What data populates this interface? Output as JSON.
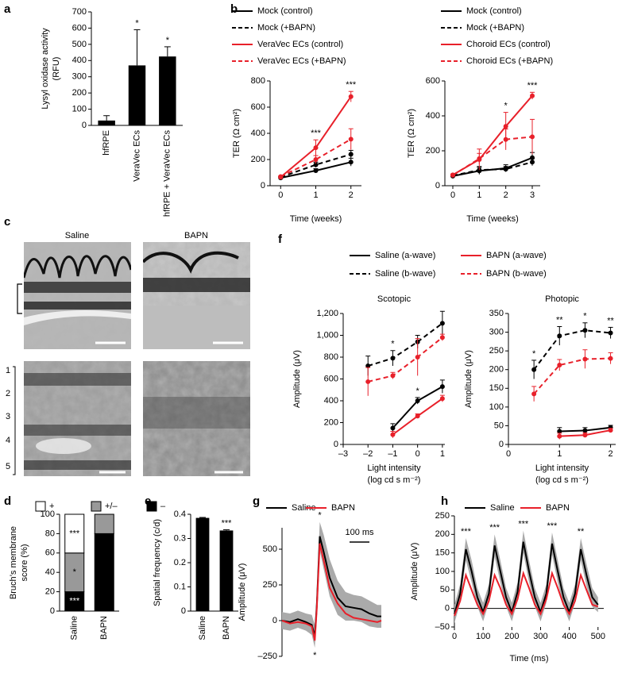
{
  "chart_data": [
    {
      "type": "bar",
      "panel": "a",
      "ylabel": [
        "Lysyl oxidase activity",
        "(RFU)"
      ],
      "categories": [
        "hfRPE",
        "VeraVec ECs",
        "hfRPE + VeraVec ECs"
      ],
      "values": [
        30,
        370,
        425
      ],
      "errors": [
        30,
        220,
        60
      ],
      "stars": [
        null,
        "*",
        "*"
      ],
      "color": "#000000",
      "ylim": [
        0,
        700
      ],
      "yticks": [
        0,
        100,
        200,
        300,
        400,
        500,
        600,
        700
      ]
    },
    {
      "type": "line",
      "panel": "b",
      "xlabel": "Time (weeks)",
      "ylabel": [
        "TER (Ω cm²)"
      ],
      "x": [
        0,
        1,
        2
      ],
      "xlim": [
        -0.3,
        2.3
      ],
      "xticks": [
        0,
        1,
        2
      ],
      "ylim": [
        0,
        800
      ],
      "yticks": [
        0,
        200,
        400,
        600,
        800
      ],
      "series": [
        {
          "name": "Mock (control)",
          "color": "#000000",
          "dashed": false,
          "markers": true,
          "values": [
            60,
            115,
            180
          ],
          "errors": [
            5,
            15,
            30
          ]
        },
        {
          "name": "Mock (+BAPN)",
          "color": "#000000",
          "dashed": true,
          "markers": true,
          "values": [
            65,
            160,
            240
          ],
          "errors": [
            5,
            20,
            30
          ]
        },
        {
          "name": "VeraVec ECs (control)",
          "color": "#e8202a",
          "dashed": false,
          "markers": true,
          "values": [
            65,
            290,
            680
          ],
          "errors": [
            5,
            60,
            40
          ],
          "stars": [
            null,
            "***",
            "***"
          ]
        },
        {
          "name": "VeraVec ECs (+BAPN)",
          "color": "#e8202a",
          "dashed": true,
          "markers": true,
          "values": [
            70,
            200,
            355
          ],
          "errors": [
            5,
            30,
            80
          ]
        }
      ]
    },
    {
      "type": "line",
      "xlabel": "Time (weeks)",
      "ylabel": [
        "TER (Ω cm²)"
      ],
      "x": [
        0,
        1,
        2,
        3
      ],
      "xlim": [
        -0.3,
        3.3
      ],
      "xticks": [
        0,
        1,
        2,
        3
      ],
      "ylim": [
        0,
        600
      ],
      "yticks": [
        0,
        200,
        400,
        600
      ],
      "series": [
        {
          "name": "Mock (control)",
          "color": "#000000",
          "dashed": false,
          "markers": true,
          "values": [
            55,
            85,
            100,
            160
          ],
          "errors": [
            5,
            20,
            20,
            30
          ]
        },
        {
          "name": "Mock (+BAPN)",
          "color": "#000000",
          "dashed": true,
          "markers": true,
          "values": [
            58,
            90,
            95,
            135
          ],
          "errors": [
            5,
            20,
            15,
            20
          ]
        },
        {
          "name": "Choroid ECs (control)",
          "color": "#e8202a",
          "dashed": false,
          "markers": true,
          "values": [
            62,
            150,
            340,
            515
          ],
          "errors": [
            5,
            60,
            80,
            20
          ],
          "stars": [
            null,
            null,
            "*",
            "***"
          ]
        },
        {
          "name": "Choroid ECs (+BAPN)",
          "color": "#e8202a",
          "dashed": true,
          "markers": true,
          "values": [
            60,
            155,
            265,
            280
          ],
          "errors": [
            5,
            30,
            60,
            100
          ]
        }
      ]
    },
    {
      "type": "stacked_bar",
      "panel": "d",
      "ylabel": [
        "Bruch’s membrane",
        "score (%)"
      ],
      "categories": [
        "Saline",
        "BAPN"
      ],
      "ylim": [
        0,
        100
      ],
      "yticks": [
        0,
        20,
        40,
        60,
        80,
        100
      ],
      "series": [
        {
          "name": "–",
          "color": "#000000",
          "values": [
            20,
            80
          ],
          "stars": [
            "***",
            null
          ]
        },
        {
          "name": "+/–",
          "color": "#999999",
          "values": [
            40,
            20
          ],
          "stars": [
            "*",
            null
          ]
        },
        {
          "name": "+",
          "color": "#ffffff",
          "values": [
            40,
            0
          ],
          "stars": [
            "***",
            null
          ]
        }
      ]
    },
    {
      "type": "bar",
      "panel": "e",
      "ylabel": [
        "Spatial frequency (c/d)"
      ],
      "categories": [
        "Saline",
        "BAPN"
      ],
      "values": [
        0.385,
        0.333
      ],
      "errors": [
        0.002,
        0.003
      ],
      "stars": [
        null,
        "***"
      ],
      "color": "#000000",
      "ylim": [
        0,
        0.4
      ],
      "yticks": [
        0,
        0.1,
        0.2,
        0.3,
        0.4
      ]
    },
    {
      "type": "line",
      "panel": "f",
      "title": "Scotopic",
      "xlabel": [
        "Light intensity",
        "(log cd s m⁻²)"
      ],
      "ylabel": [
        "Amplitude (μV)"
      ],
      "xlim": [
        -3,
        1.1
      ],
      "xticks": [
        {
          "value": -3,
          "label": "–3"
        },
        {
          "value": -2,
          "label": "–2"
        },
        {
          "value": -1,
          "label": "–1"
        },
        0,
        1
      ],
      "ylim": [
        0,
        1200
      ],
      "yticks": [
        0,
        200,
        400,
        600,
        800,
        {
          "value": 1000,
          "label": "1,000"
        },
        {
          "value": 1200,
          "label": "1,200"
        }
      ],
      "series": [
        {
          "name": "Saline (a-wave)",
          "color": "#000000",
          "dashed": false,
          "markers": true,
          "x": [
            -1,
            0,
            1
          ],
          "values": [
            150,
            400,
            530
          ],
          "errors": [
            40,
            30,
            60
          ],
          "stars": [
            null,
            "*",
            null
          ]
        },
        {
          "name": "BAPN (a-wave)",
          "color": "#e8202a",
          "dashed": false,
          "markers": true,
          "x": [
            -1,
            0,
            1
          ],
          "values": [
            90,
            260,
            420
          ],
          "errors": [
            30,
            20,
            30
          ]
        },
        {
          "name": "Saline (b-wave)",
          "color": "#000000",
          "dashed": true,
          "markers": true,
          "x": [
            -2,
            -1,
            0,
            1
          ],
          "values": [
            720,
            790,
            940,
            1110
          ],
          "errors": [
            90,
            70,
            60,
            110
          ],
          "stars": [
            null,
            "*",
            null,
            null
          ]
        },
        {
          "name": "BAPN (b-wave)",
          "color": "#e8202a",
          "dashed": true,
          "markers": true,
          "x": [
            -2,
            -1,
            0,
            1
          ],
          "values": [
            575,
            630,
            800,
            980
          ],
          "errors": [
            130,
            30,
            170,
            30
          ]
        }
      ]
    },
    {
      "type": "line",
      "title": "Photopic",
      "xlabel": [
        "Light intensity",
        "(log cd s m⁻²)"
      ],
      "ylabel": [
        "Amplitude (μV)"
      ],
      "xlim": [
        0,
        2.1
      ],
      "xticks": [
        0,
        1,
        2
      ],
      "ylim": [
        0,
        350
      ],
      "yticks": [
        0,
        50,
        100,
        150,
        200,
        250,
        300,
        350
      ],
      "series": [
        {
          "color": "#000000",
          "dashed": false,
          "markers": true,
          "x": [
            1,
            1.5,
            2
          ],
          "values": [
            35,
            37,
            45
          ],
          "errors": [
            10,
            8,
            6
          ]
        },
        {
          "color": "#e8202a",
          "dashed": false,
          "markers": true,
          "x": [
            1,
            1.5,
            2
          ],
          "values": [
            22,
            25,
            38
          ],
          "errors": [
            8,
            6,
            5
          ]
        },
        {
          "color": "#000000",
          "dashed": true,
          "markers": true,
          "x": [
            0.5,
            1,
            1.5,
            2
          ],
          "values": [
            200,
            290,
            305,
            298
          ],
          "errors": [
            25,
            25,
            20,
            15
          ],
          "stars": [
            "*",
            "**",
            "*",
            "**"
          ]
        },
        {
          "color": "#e8202a",
          "dashed": true,
          "markers": true,
          "x": [
            0.5,
            1,
            1.5,
            2
          ],
          "values": [
            135,
            212,
            228,
            230
          ],
          "errors": [
            20,
            15,
            25,
            15
          ]
        }
      ]
    },
    {
      "type": "line",
      "panel": "g",
      "ylabel": [
        "Amplitude (μV)"
      ],
      "error_style": "band",
      "band_color": "#aaaaaa",
      "xlim": [
        0,
        500
      ],
      "ylim": [
        -250,
        650
      ],
      "yticks": [
        {
          "value": -250,
          "label": "–250"
        },
        0,
        250,
        500
      ],
      "scale_bar": {
        "length": 100,
        "label": "100 ms"
      },
      "x": [
        0,
        40,
        80,
        120,
        150,
        165,
        175,
        190,
        210,
        240,
        280,
        320,
        360,
        400,
        440,
        480,
        500
      ],
      "series": [
        {
          "name": "Saline",
          "color": "#000000",
          "values": [
            0,
            -10,
            10,
            -10,
            -30,
            -110,
            100,
            590,
            480,
            300,
            160,
            100,
            90,
            80,
            50,
            30,
            30
          ],
          "errors": [
            60,
            60,
            60,
            60,
            70,
            80,
            100,
            100,
            120,
            130,
            120,
            100,
            90,
            90,
            90,
            80,
            80
          ],
          "stars": [
            null,
            null,
            null,
            null,
            null,
            "*",
            null,
            "*",
            null,
            null,
            null,
            null,
            null,
            null,
            null,
            null,
            null
          ]
        },
        {
          "name": "BAPN",
          "color": "#e8202a",
          "values": [
            0,
            -20,
            -10,
            -20,
            -40,
            -140,
            80,
            540,
            420,
            230,
            120,
            50,
            20,
            10,
            0,
            -10,
            0
          ]
        }
      ]
    },
    {
      "type": "line",
      "panel": "h",
      "xlabel": "Time (ms)",
      "ylabel": [
        "Amplitude (μV)"
      ],
      "error_style": "band",
      "band_color": "#aaaaaa",
      "xlim": [
        0,
        520
      ],
      "xticks": [
        0,
        100,
        200,
        300,
        400,
        500
      ],
      "ylim": [
        -50,
        250
      ],
      "yticks": [
        {
          "value": -50,
          "label": "–50"
        },
        0,
        50,
        100,
        150,
        200,
        250
      ],
      "x": [
        0,
        20,
        40,
        60,
        80,
        100,
        120,
        140,
        160,
        180,
        200,
        220,
        240,
        260,
        280,
        300,
        320,
        340,
        360,
        380,
        400,
        420,
        440,
        460,
        480,
        500
      ],
      "series": [
        {
          "name": "Saline",
          "color": "#000000",
          "values": [
            -15,
            40,
            160,
            100,
            30,
            -10,
            40,
            170,
            100,
            30,
            -10,
            45,
            180,
            100,
            30,
            -10,
            40,
            175,
            100,
            30,
            -10,
            40,
            160,
            90,
            30,
            10
          ],
          "errors": [
            25,
            25,
            30,
            30,
            25,
            25,
            25,
            30,
            30,
            25,
            25,
            25,
            30,
            30,
            25,
            25,
            25,
            30,
            30,
            25,
            25,
            25,
            30,
            30,
            25,
            20
          ],
          "stars": [
            null,
            null,
            "***",
            null,
            null,
            null,
            null,
            "***",
            null,
            null,
            null,
            null,
            "***",
            null,
            null,
            null,
            null,
            "***",
            null,
            null,
            null,
            null,
            "**",
            null,
            null,
            null
          ]
        },
        {
          "name": "BAPN",
          "color": "#e8202a",
          "values": [
            -20,
            20,
            90,
            50,
            10,
            -15,
            20,
            90,
            55,
            10,
            -15,
            25,
            95,
            55,
            10,
            -15,
            25,
            95,
            55,
            10,
            -15,
            20,
            90,
            50,
            10,
            5
          ]
        }
      ]
    }
  ],
  "micrographs": {
    "panel": "c",
    "columns": [
      "Saline",
      "BAPN"
    ],
    "layers": [
      "1",
      "2",
      "3",
      "4",
      "5"
    ]
  }
}
